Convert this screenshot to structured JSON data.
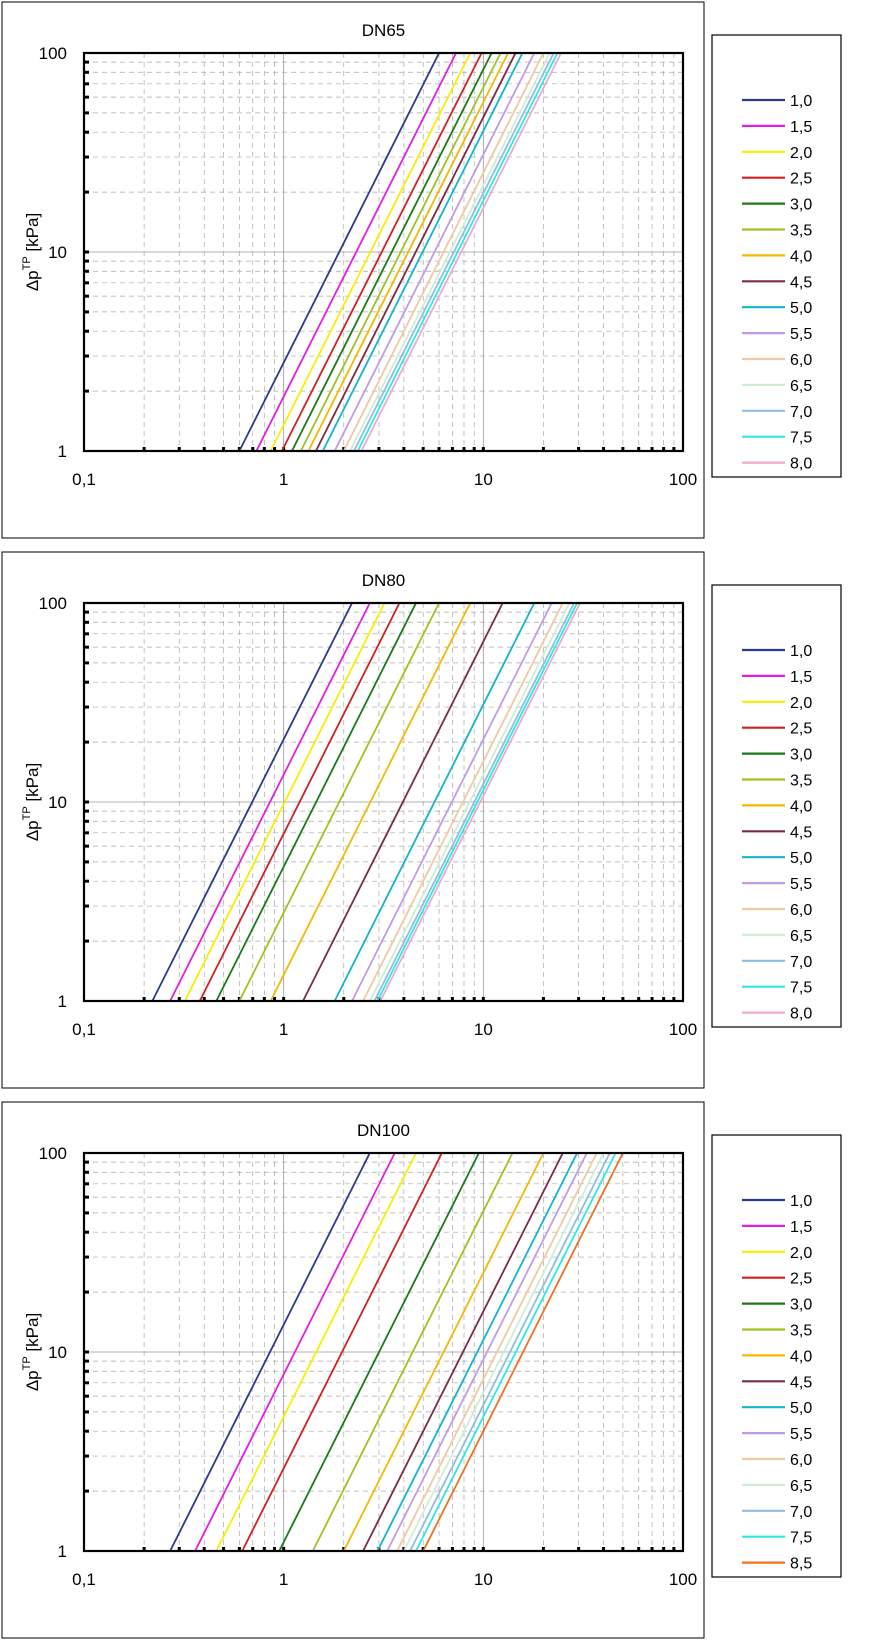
{
  "chart_data": [
    {
      "type": "line",
      "title": "DN65",
      "ylabel": "Δp",
      "ylabel_superscript": "TP",
      "ylabel_unit": " [kPa]",
      "xscale": "log",
      "yscale": "log",
      "xlim": [
        0.1,
        100
      ],
      "ylim": [
        1,
        100
      ],
      "x_ticks": [
        "0,1",
        "1",
        "10",
        "100"
      ],
      "y_ticks": [
        "1",
        "10",
        "100"
      ],
      "grid": true,
      "legend_position": "right",
      "series": [
        {
          "name": "1,0",
          "color": "#2b3a8c",
          "x": [
            0.6,
            6.0
          ],
          "y": [
            1,
            100
          ]
        },
        {
          "name": "1,5",
          "color": "#e020e0",
          "x": [
            0.73,
            7.3
          ],
          "y": [
            1,
            100
          ]
        },
        {
          "name": "2,0",
          "color": "#f5f000",
          "x": [
            0.86,
            8.6
          ],
          "y": [
            1,
            100
          ]
        },
        {
          "name": "2,5",
          "color": "#d02020",
          "x": [
            0.98,
            9.8
          ],
          "y": [
            1,
            100
          ]
        },
        {
          "name": "3,0",
          "color": "#1a7a1a",
          "x": [
            1.1,
            11.0
          ],
          "y": [
            1,
            100
          ]
        },
        {
          "name": "3,5",
          "color": "#9fc21e",
          "x": [
            1.22,
            12.2
          ],
          "y": [
            1,
            100
          ]
        },
        {
          "name": "4,0",
          "color": "#f5b800",
          "x": [
            1.33,
            13.3
          ],
          "y": [
            1,
            100
          ]
        },
        {
          "name": "4,5",
          "color": "#7a2a4a",
          "x": [
            1.45,
            14.5
          ],
          "y": [
            1,
            100
          ]
        },
        {
          "name": "5,0",
          "color": "#14b4cc",
          "x": [
            1.57,
            15.7
          ],
          "y": [
            1,
            100
          ]
        },
        {
          "name": "5,5",
          "color": "#c39ae6",
          "x": [
            1.8,
            18.0
          ],
          "y": [
            1,
            100
          ]
        },
        {
          "name": "6,0",
          "color": "#f2c8a2",
          "x": [
            2.0,
            20.0
          ],
          "y": [
            1,
            100
          ]
        },
        {
          "name": "6,5",
          "color": "#cdeed2",
          "x": [
            2.15,
            21.5
          ],
          "y": [
            1,
            100
          ]
        },
        {
          "name": "7,0",
          "color": "#8fbde0",
          "x": [
            2.25,
            22.5
          ],
          "y": [
            1,
            100
          ]
        },
        {
          "name": "7,5",
          "color": "#2fe6e6",
          "x": [
            2.35,
            23.5
          ],
          "y": [
            1,
            100
          ]
        },
        {
          "name": "8,0",
          "color": "#f0a8cc",
          "x": [
            2.45,
            24.5
          ],
          "y": [
            1,
            100
          ]
        }
      ]
    },
    {
      "type": "line",
      "title": "DN80",
      "ylabel": "Δp",
      "ylabel_superscript": "TP",
      "ylabel_unit": " [kPa]",
      "xscale": "log",
      "yscale": "log",
      "xlim": [
        0.1,
        100
      ],
      "ylim": [
        1,
        100
      ],
      "x_ticks": [
        "0,1",
        "1",
        "10",
        "100"
      ],
      "y_ticks": [
        "1",
        "10",
        "100"
      ],
      "grid": true,
      "legend_position": "right",
      "series": [
        {
          "name": "1,0",
          "color": "#2b3a8c",
          "x": [
            0.22,
            2.2
          ],
          "y": [
            1,
            100
          ]
        },
        {
          "name": "1,5",
          "color": "#e020e0",
          "x": [
            0.27,
            2.7
          ],
          "y": [
            1,
            100
          ]
        },
        {
          "name": "2,0",
          "color": "#f5f000",
          "x": [
            0.32,
            3.2
          ],
          "y": [
            1,
            100
          ]
        },
        {
          "name": "2,5",
          "color": "#d02020",
          "x": [
            0.38,
            3.8
          ],
          "y": [
            1,
            100
          ]
        },
        {
          "name": "3,0",
          "color": "#1a7a1a",
          "x": [
            0.46,
            4.6
          ],
          "y": [
            1,
            100
          ]
        },
        {
          "name": "3,5",
          "color": "#9fc21e",
          "x": [
            0.6,
            6.0
          ],
          "y": [
            1,
            100
          ]
        },
        {
          "name": "4,0",
          "color": "#f5b800",
          "x": [
            0.86,
            8.6
          ],
          "y": [
            1,
            100
          ]
        },
        {
          "name": "4,5",
          "color": "#7a2a4a",
          "x": [
            1.25,
            12.5
          ],
          "y": [
            1,
            100
          ]
        },
        {
          "name": "5,0",
          "color": "#14b4cc",
          "x": [
            1.8,
            18.0
          ],
          "y": [
            1,
            100
          ]
        },
        {
          "name": "5,5",
          "color": "#c39ae6",
          "x": [
            2.2,
            22.0
          ],
          "y": [
            1,
            100
          ]
        },
        {
          "name": "6,0",
          "color": "#f2c8a2",
          "x": [
            2.5,
            25.0
          ],
          "y": [
            1,
            100
          ]
        },
        {
          "name": "6,5",
          "color": "#cdeed2",
          "x": [
            2.7,
            27.0
          ],
          "y": [
            1,
            100
          ]
        },
        {
          "name": "7,0",
          "color": "#8fbde0",
          "x": [
            2.85,
            28.5
          ],
          "y": [
            1,
            100
          ]
        },
        {
          "name": "7,5",
          "color": "#2fe6e6",
          "x": [
            2.95,
            29.5
          ],
          "y": [
            1,
            100
          ]
        },
        {
          "name": "8,0",
          "color": "#f0a8cc",
          "x": [
            3.05,
            30.5
          ],
          "y": [
            1,
            100
          ]
        }
      ]
    },
    {
      "type": "line",
      "title": "DN100",
      "ylabel": "Δp",
      "ylabel_superscript": "TP",
      "ylabel_unit": " [kPa]",
      "xscale": "log",
      "yscale": "log",
      "xlim": [
        0.1,
        100
      ],
      "ylim": [
        1,
        100
      ],
      "x_ticks": [
        "0,1",
        "1",
        "10",
        "100"
      ],
      "y_ticks": [
        "1",
        "10",
        "100"
      ],
      "grid": true,
      "legend_position": "right",
      "series": [
        {
          "name": "1,0",
          "color": "#2b3a8c",
          "x": [
            0.27,
            2.7
          ],
          "y": [
            1,
            100
          ]
        },
        {
          "name": "1,5",
          "color": "#e020e0",
          "x": [
            0.36,
            3.6
          ],
          "y": [
            1,
            100
          ]
        },
        {
          "name": "2,0",
          "color": "#f5f000",
          "x": [
            0.46,
            4.6
          ],
          "y": [
            1,
            100
          ]
        },
        {
          "name": "2,5",
          "color": "#d02020",
          "x": [
            0.62,
            6.2
          ],
          "y": [
            1,
            100
          ]
        },
        {
          "name": "3,0",
          "color": "#1a7a1a",
          "x": [
            0.95,
            9.5
          ],
          "y": [
            1,
            100
          ]
        },
        {
          "name": "3,5",
          "color": "#9fc21e",
          "x": [
            1.4,
            14.0
          ],
          "y": [
            1,
            100
          ]
        },
        {
          "name": "4,0",
          "color": "#f5b800",
          "x": [
            2.0,
            20.0
          ],
          "y": [
            1,
            100
          ]
        },
        {
          "name": "4,5",
          "color": "#7a2a4a",
          "x": [
            2.5,
            25.0
          ],
          "y": [
            1,
            100
          ]
        },
        {
          "name": "5,0",
          "color": "#14b4cc",
          "x": [
            2.95,
            29.5
          ],
          "y": [
            1,
            100
          ]
        },
        {
          "name": "5,5",
          "color": "#c39ae6",
          "x": [
            3.3,
            33.0
          ],
          "y": [
            1,
            100
          ]
        },
        {
          "name": "6,0",
          "color": "#f2c8a2",
          "x": [
            3.7,
            37.0
          ],
          "y": [
            1,
            100
          ]
        },
        {
          "name": "6,5",
          "color": "#cdeed2",
          "x": [
            4.0,
            40.0
          ],
          "y": [
            1,
            100
          ]
        },
        {
          "name": "7,0",
          "color": "#8fbde0",
          "x": [
            4.3,
            43.0
          ],
          "y": [
            1,
            100
          ]
        },
        {
          "name": "7,5",
          "color": "#2fe6e6",
          "x": [
            4.6,
            46.0
          ],
          "y": [
            1,
            100
          ]
        },
        {
          "name": "8,5",
          "color": "#f07020",
          "x": [
            5.0,
            50.0
          ],
          "y": [
            1,
            100
          ]
        }
      ]
    }
  ]
}
